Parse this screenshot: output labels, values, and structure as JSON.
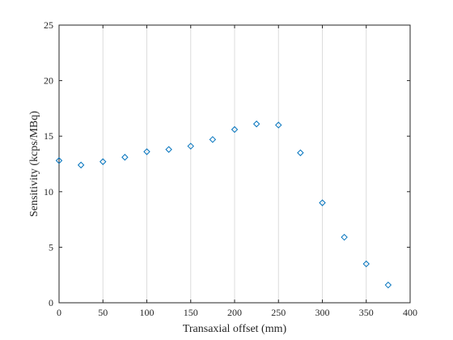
{
  "chart_data": {
    "type": "scatter",
    "title": "",
    "xlabel": "Transaxial offset (mm)",
    "ylabel": "Sensitivity (kcps/MBq)",
    "xlim": [
      0,
      400
    ],
    "ylim": [
      0,
      25
    ],
    "xticks": [
      "0",
      "50",
      "100",
      "150",
      "200",
      "250",
      "300",
      "350",
      "400"
    ],
    "yticks": [
      "0",
      "5",
      "10",
      "15",
      "20",
      "25"
    ],
    "grid": "vertical",
    "marker": "diamond",
    "marker_color": "#0072BD",
    "x": [
      0,
      25,
      50,
      75,
      100,
      125,
      150,
      175,
      200,
      225,
      250,
      275,
      300,
      325,
      350,
      375
    ],
    "y": [
      12.8,
      12.4,
      12.7,
      13.1,
      13.6,
      13.8,
      14.1,
      14.7,
      15.6,
      16.1,
      16.0,
      13.5,
      9.0,
      5.9,
      3.5,
      1.6
    ]
  }
}
